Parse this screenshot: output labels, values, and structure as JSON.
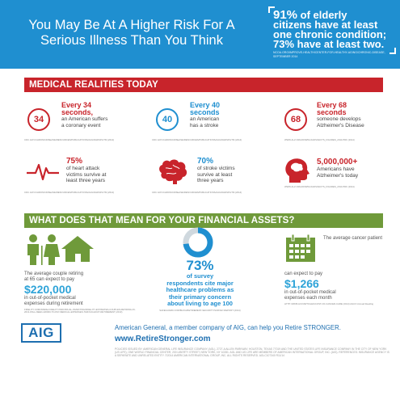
{
  "header": {
    "title": "You May Be At A Higher Risk For A Serious Illness Than You Think",
    "stat_pct": "91%",
    "stat_line1": "of elderly",
    "stat_line2": "citizens have at least",
    "stat_line3": "one chronic condition;",
    "stat_line4": "73% have at least two.",
    "stat_source": "NCOA.ORG/IMPROVE-HEALTH/CENTER-FOR-HEALTHY-AGING/CHRONIC-DISEASE, SEPTEMBER 2014"
  },
  "medical": {
    "heading": "MEDICAL REALITIES TODAY",
    "items": [
      {
        "circle": "34",
        "big1": "Every 34",
        "big2": "seconds,",
        "desc1": "an American suffers",
        "desc2": "a coronary event",
        "src": "CDC.GOV/CHRONICDISEASE/RESOURCES/PUBLICATIONS/AAG/DHDSP.HTM (2014)"
      },
      {
        "circle": "40",
        "big1": "Every 40",
        "big2": "seconds",
        "desc1": "an American",
        "desc2": "has a stroke",
        "src": "CDC.GOV/CHRONICDISEASE/RESOURCES/PUBLICATIONS/AAG/DHDSP.HTM (2014)"
      },
      {
        "circle": "68",
        "big1": "Every 68",
        "big2": "seconds",
        "desc1": "someone develops",
        "desc2": "Alzheimer's Disease",
        "src": "WWW.ALZ.ORG/DOWNLOADS/FACTS_FIGURES_2014.PDF (2014)"
      },
      {
        "pct": "75%",
        "desc1": "of heart attack",
        "desc2": "victims survive at",
        "desc3": "least three years",
        "src": "CDC.GOV/CHRONICDISEASE/RESOURCES/PUBLICATIONS/AAG/DHDSP.HTM (2014)"
      },
      {
        "pct": "70%",
        "desc1": "of stroke victims",
        "desc2": "survive at least",
        "desc3": "three years",
        "src": "CDC.GOV/CHRONICDISEASE/RESOURCES/PUBLICATIONS/AAG/DHDSP.HTM (2014)"
      },
      {
        "pct": "5,000,000+",
        "desc1": "Americans have",
        "desc2": "Alzheimer's today",
        "src": "WWW.ALZ.ORG/DOWNLOADS/FACTS_FIGURES_2014.PDF (2014)"
      }
    ]
  },
  "financial": {
    "heading": "WHAT DOES THAT MEAN FOR YOUR FINANCIAL ASSETS?",
    "left": {
      "line1": "The average couple retiring",
      "line2": "at 65 can expect to pay",
      "big": "$220,000",
      "line3": "in out-of-pocket medical",
      "line4": "expenses during retirement",
      "src": "FIDELITY.COM/INSIDE-FIDELITY/INDIVIDUAL-INVESTING/FIDELITY-ESTIMATES-COUPLES-RETIRING-IN-2013-WILL-NEED-220000-TO-PAY-MEDICAL-EXPENSES-THROUGHOUT-RETIREMENT (2013)"
    },
    "center": {
      "pct": "73%",
      "line1": "of survey",
      "line2": "respondents cite major",
      "line3": "healthcare problems as",
      "line4": "their primary concern",
      "line5": "about living to age 100",
      "src": "SAFEGUARD.COM/BLOG/RETIREMENT-SECURITY/SURVEY-REPORT (2014)"
    },
    "right": {
      "line1": "The average cancer patient",
      "line2": "can expect to pay",
      "big": "$1,266",
      "line3": "in out-of-pocket medical",
      "line4": "expenses each month",
      "src": "HTTP://MKB.GOV/ARTICLES/COST-OF-CANCER-CARE (2014) AGCO Annual Reading"
    }
  },
  "footer": {
    "logo": "AIG",
    "line1": "American General, a member company of AIG, can help you Retire STRONGER.",
    "url": "www.RetireStronger.com",
    "fine": "POLICIES ISSUED BY: AMERICAN GENERAL LIFE INSURANCE COMPANY (AGL), 2727-A ALLEN PARKWAY, HOUSTON, TEXAS 77019 AND THE UNITED STATES LIFE INSURANCE COMPANY IN THE CITY OF NEW YORK (US LIFE), ONE WORLD FINANCIAL CENTER, 200 LIBERTY STREET, NEW YORK, NY 10281. AGL AND US LIFE ARE MEMBERS OF AMERICAN INTERNATIONAL GROUP, INC. (AIG). REFERENCES: INSURANCE AGENCY IS A SEPARATE AND UNRELATED ENTITY. ©2014 AMERICAN INTERNATIONAL GROUP, INC. ALL RIGHTS RESERVED. AGLC107340 R11/14"
  }
}
